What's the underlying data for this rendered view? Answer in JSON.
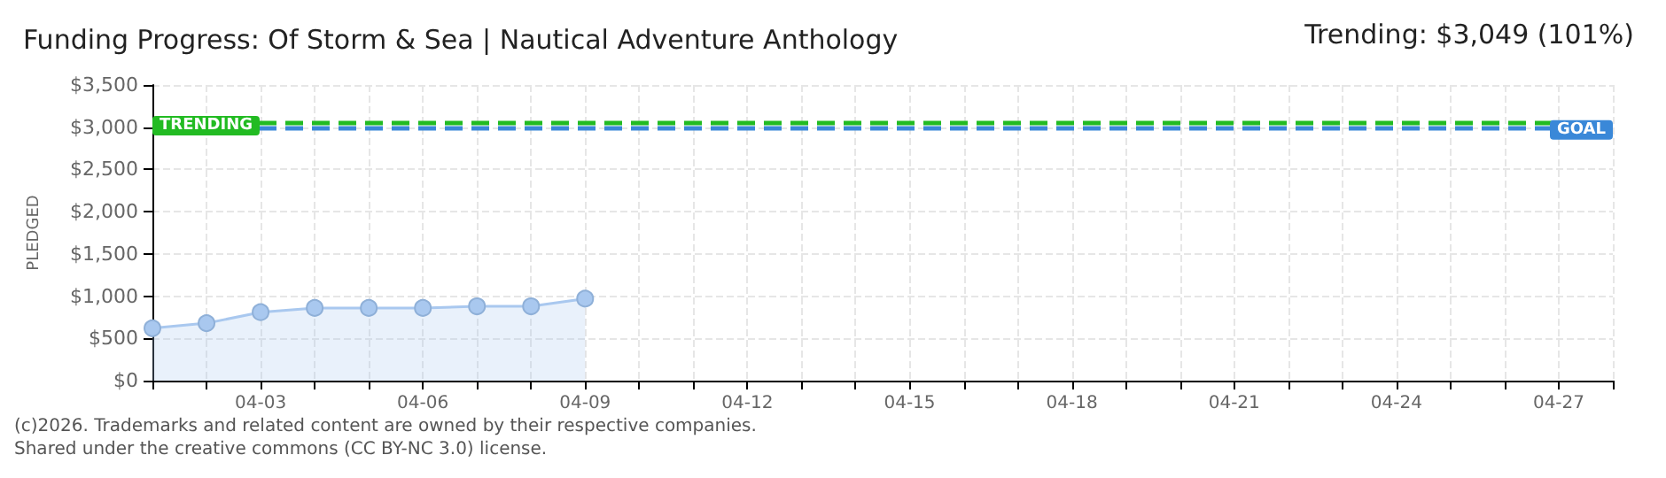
{
  "chart_data": {
    "type": "area",
    "title": "Funding Progress: Of Storm & Sea | Nautical Adventure Anthology",
    "ylabel": "PLEDGED",
    "annotations": [
      "Trending: $3,049 (101%)",
      "(c)2026. Trademarks and related content are owned by their respective companies.",
      "Shared under the creative commons (CC BY-NC 3.0) license."
    ],
    "x": [
      "--04-01",
      "--04-02",
      "--04-03",
      "--04-04",
      "--04-05",
      "--04-06",
      "--04-07",
      "--04-08",
      "--04-09"
    ],
    "series": [
      {
        "color": "#a9c8ef",
        "values": [
          620,
          680,
          810,
          860,
          860,
          860,
          880,
          880,
          970
        ]
      }
    ],
    "xlim": [
      "--04-01",
      "--04-28"
    ],
    "xticks": [
      {
        "value": "--04-01",
        "label": null
      },
      {
        "value": "--04-02",
        "label": null
      },
      {
        "value": "--04-03",
        "label": "04-03"
      },
      {
        "value": "--04-04",
        "label": null
      },
      {
        "value": "--04-05",
        "label": null
      },
      {
        "value": "--04-06",
        "label": "04-06"
      },
      {
        "value": "--04-07",
        "label": null
      },
      {
        "value": "--04-08",
        "label": null
      },
      {
        "value": "--04-09",
        "label": "04-09"
      },
      {
        "value": "--04-10",
        "label": null
      },
      {
        "value": "--04-11",
        "label": null
      },
      {
        "value": "--04-12",
        "label": "04-12"
      },
      {
        "value": "--04-13",
        "label": null
      },
      {
        "value": "--04-14",
        "label": null
      },
      {
        "value": "--04-15",
        "label": "04-15"
      },
      {
        "value": "--04-16",
        "label": null
      },
      {
        "value": "--04-17",
        "label": null
      },
      {
        "value": "--04-18",
        "label": "04-18"
      },
      {
        "value": "--04-19",
        "label": null
      },
      {
        "value": "--04-20",
        "label": null
      },
      {
        "value": "--04-21",
        "label": "04-21"
      },
      {
        "value": "--04-22",
        "label": null
      },
      {
        "value": "--04-23",
        "label": null
      },
      {
        "value": "--04-24",
        "label": "04-24"
      },
      {
        "value": "--04-25",
        "label": null
      },
      {
        "value": "--04-26",
        "label": null
      },
      {
        "value": "--04-27",
        "label": "04-27"
      },
      {
        "value": "--04-28",
        "label": null
      }
    ],
    "ylim": [
      0,
      3500
    ],
    "yticks": [
      {
        "value": 0,
        "label": "$0"
      },
      {
        "value": 500,
        "label": "$500"
      },
      {
        "value": 1000,
        "label": "$1,000"
      },
      {
        "value": 1500,
        "label": "$1,500"
      },
      {
        "value": 2000,
        "label": "$2,000"
      },
      {
        "value": 2500,
        "label": "$2,500"
      },
      {
        "value": 3000,
        "label": "$3,000"
      },
      {
        "value": 3500,
        "label": "$3,500"
      }
    ],
    "ref_lines": [
      {
        "axis": "y",
        "value": 3049,
        "label": "TRENDING",
        "color": "#22bb22",
        "line_style": "dashed"
      },
      {
        "axis": "y",
        "value": 3000,
        "label": "GOAL",
        "color": "#3a88d8",
        "line_style": "dashed"
      }
    ],
    "grid": true,
    "marker": "circle",
    "line_style": "solid"
  }
}
